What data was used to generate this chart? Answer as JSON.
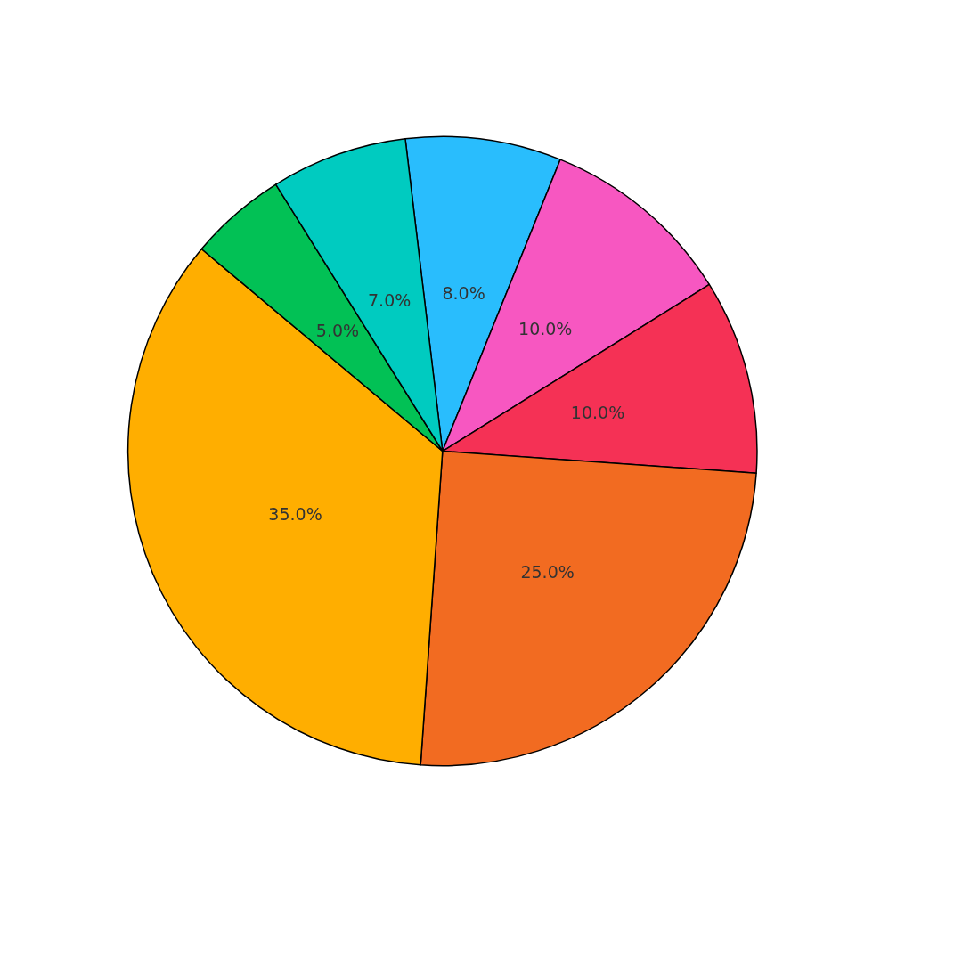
{
  "chart_data": {
    "type": "pie",
    "categories": [
      null,
      null,
      null,
      null,
      null,
      null,
      null
    ],
    "values": [
      8,
      10,
      10,
      25,
      35,
      5,
      7
    ],
    "value_labels": [
      "8.0%",
      "10.0%",
      "10.0%",
      "25.0%",
      "35.0%",
      "5.0%",
      "7.0%"
    ],
    "colors": [
      "#29bdfd",
      "#f757c1",
      "#f53155",
      "#f26b21",
      "#ffae00",
      "#02c155",
      "#00cbc0"
    ]
  }
}
